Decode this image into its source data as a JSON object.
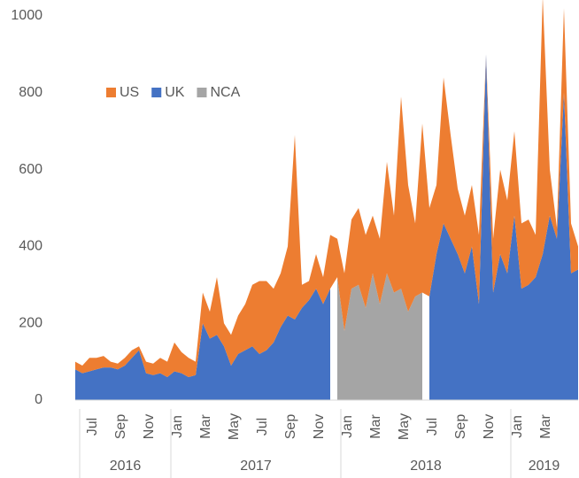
{
  "chart_data": {
    "type": "area",
    "categories": [
      null,
      null,
      "Jul",
      null,
      null,
      null,
      "Sep",
      null,
      null,
      null,
      "Nov",
      null,
      null,
      null,
      "Jan",
      null,
      null,
      null,
      "Mar",
      null,
      null,
      null,
      "May",
      null,
      null,
      null,
      "Jul",
      null,
      null,
      null,
      "Sep",
      null,
      null,
      null,
      "Nov",
      null,
      null,
      null,
      "Jan",
      null,
      null,
      null,
      "Mar",
      null,
      null,
      null,
      "May",
      null,
      null,
      null,
      "Jul",
      null,
      null,
      null,
      "Sep",
      null,
      null,
      null,
      "Nov",
      null,
      null,
      null,
      "Jan",
      null,
      null,
      null,
      "Mar",
      null,
      null,
      null,
      null,
      null
    ],
    "year_groups": [
      {
        "label": "2016",
        "count": 14
      },
      {
        "label": "2017",
        "count": 24
      },
      {
        "label": "2018",
        "count": 24
      },
      {
        "label": "2019",
        "count": 10
      }
    ],
    "series": [
      {
        "name": "US",
        "color": "#ed7d31",
        "values": [
          20,
          20,
          35,
          30,
          30,
          15,
          15,
          20,
          20,
          10,
          30,
          30,
          40,
          40,
          75,
          55,
          50,
          35,
          80,
          70,
          150,
          60,
          80,
          100,
          120,
          160,
          190,
          180,
          140,
          140,
          180,
          480,
          60,
          50,
          90,
          70,
          140,
          100,
          150,
          180,
          200,
          190,
          150,
          170,
          290,
          200,
          500,
          330,
          190,
          440,
          230,
          180,
          380,
          270,
          170,
          150,
          160,
          180,
          0,
          140,
          220,
          190,
          220,
          170,
          170,
          110,
          670,
          120,
          30,
          220,
          130,
          60
        ]
      },
      {
        "name": "UK",
        "color": "#4472c4",
        "values": [
          80,
          70,
          75,
          80,
          85,
          85,
          80,
          90,
          110,
          130,
          70,
          65,
          70,
          60,
          75,
          70,
          60,
          65,
          200,
          160,
          170,
          140,
          90,
          120,
          130,
          140,
          120,
          130,
          150,
          190,
          220,
          210,
          240,
          260,
          290,
          250,
          290,
          null,
          null,
          null,
          null,
          null,
          null,
          null,
          null,
          null,
          null,
          null,
          null,
          null,
          270,
          380,
          460,
          420,
          380,
          330,
          400,
          250,
          900,
          280,
          380,
          330,
          480,
          290,
          300,
          320,
          380,
          480,
          420,
          800,
          330,
          340
        ]
      },
      {
        "name": "NCA",
        "color": "#a5a5a5",
        "values": [
          null,
          null,
          null,
          null,
          null,
          null,
          null,
          null,
          null,
          null,
          null,
          null,
          null,
          null,
          null,
          null,
          null,
          null,
          null,
          null,
          null,
          null,
          null,
          null,
          null,
          null,
          null,
          null,
          null,
          null,
          null,
          null,
          null,
          null,
          null,
          null,
          null,
          320,
          180,
          290,
          300,
          240,
          330,
          250,
          330,
          280,
          290,
          230,
          270,
          280,
          null,
          null,
          null,
          null,
          null,
          null,
          null,
          null,
          null,
          null,
          null,
          null,
          null,
          null,
          null,
          null,
          null,
          null,
          null,
          null,
          null,
          null
        ]
      }
    ],
    "ylim": [
      0,
      1000
    ],
    "yticks": [
      0,
      200,
      400,
      600,
      800,
      1000
    ],
    "legend": "top-left",
    "grid": false
  }
}
